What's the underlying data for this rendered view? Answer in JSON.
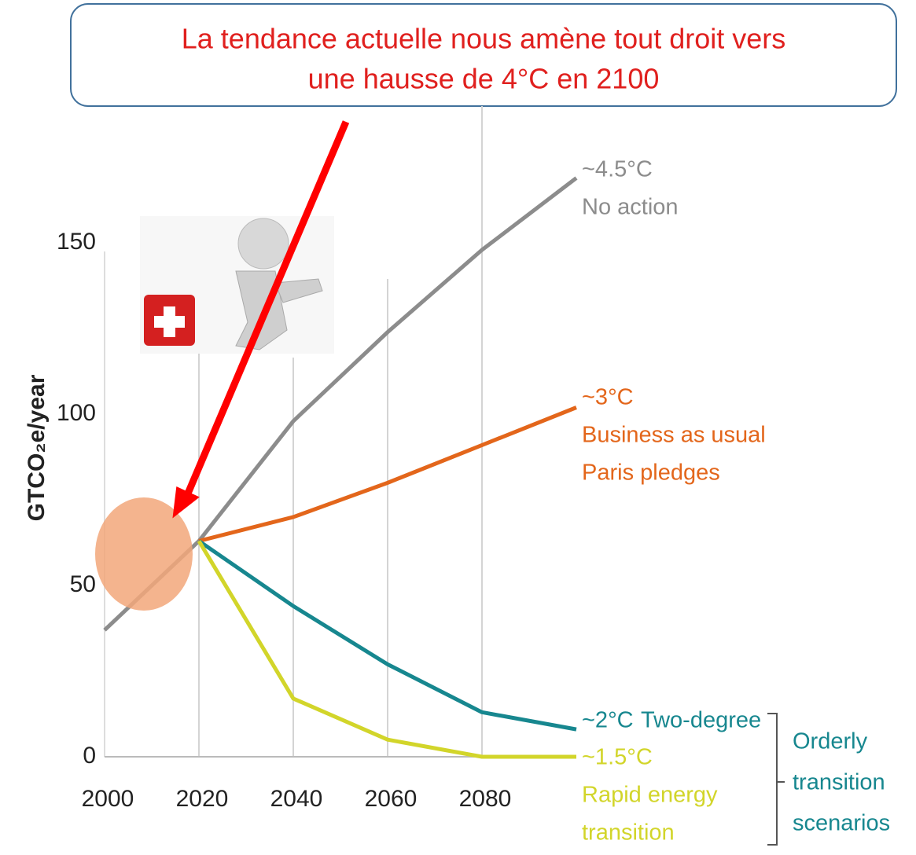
{
  "callout": {
    "lines": [
      "La tendance actuelle nous amène tout droit vers",
      "une hausse de 4°C en 2100"
    ]
  },
  "chart_data": {
    "type": "line",
    "ylabel": "GTCO₂e/year",
    "x": [
      2000,
      2020,
      2040,
      2060,
      2080,
      2100
    ],
    "xlim": [
      2000,
      2100
    ],
    "xticks": [
      2000,
      2020,
      2040,
      2060,
      2080
    ],
    "ylim": [
      0,
      190
    ],
    "yticks": [
      0,
      50,
      100,
      150
    ],
    "grid": true,
    "series": [
      {
        "temperature": "~4.5°C",
        "label_lines": [
          "No action"
        ],
        "color": "#8c8c8c",
        "values": [
          37,
          63,
          98,
          124,
          148,
          169
        ]
      },
      {
        "temperature": "~3°C",
        "label_lines": [
          "Business as usual",
          "Paris pledges"
        ],
        "color": "#e3661b",
        "values": [
          null,
          63,
          70,
          80,
          91,
          102
        ]
      },
      {
        "temperature": "~2°C",
        "label_lines": [
          "Two-degree"
        ],
        "color": "#17878f",
        "values": [
          null,
          63,
          44,
          27,
          13,
          8
        ]
      },
      {
        "temperature": "~1.5°C",
        "label_lines": [
          "Rapid energy",
          "transition"
        ],
        "color": "#d2d52a",
        "values": [
          null,
          63,
          17,
          5,
          0,
          0
        ]
      }
    ],
    "group_label": [
      "Orderly",
      "transition",
      "scenarios"
    ]
  }
}
